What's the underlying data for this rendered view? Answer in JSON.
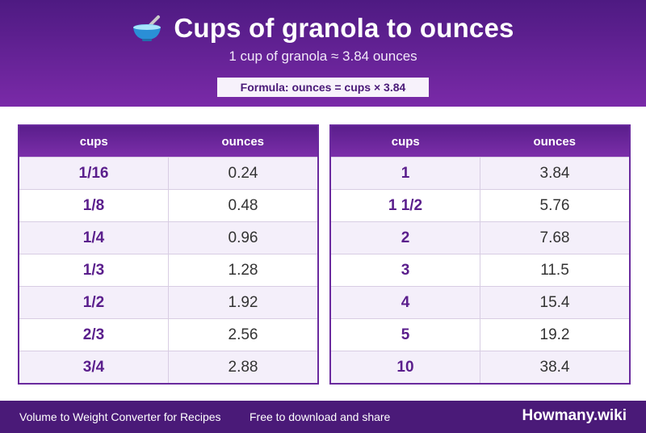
{
  "header": {
    "title": "Cups of granola to ounces",
    "subtitle": "1 cup of granola ≈ 3.84 ounces",
    "formula": "Formula: ounces = cups × 3.84",
    "icon": "bowl-icon"
  },
  "table_left": {
    "col1": "cups",
    "col2": "ounces",
    "rows": [
      {
        "cups": "1/16",
        "ounces": "0.24"
      },
      {
        "cups": "1/8",
        "ounces": "0.48"
      },
      {
        "cups": "1/4",
        "ounces": "0.96"
      },
      {
        "cups": "1/3",
        "ounces": "1.28"
      },
      {
        "cups": "1/2",
        "ounces": "1.92"
      },
      {
        "cups": "2/3",
        "ounces": "2.56"
      },
      {
        "cups": "3/4",
        "ounces": "2.88"
      }
    ]
  },
  "table_right": {
    "col1": "cups",
    "col2": "ounces",
    "rows": [
      {
        "cups": "1",
        "ounces": "3.84"
      },
      {
        "cups": "1 1/2",
        "ounces": "5.76"
      },
      {
        "cups": "2",
        "ounces": "7.68"
      },
      {
        "cups": "3",
        "ounces": "11.5"
      },
      {
        "cups": "4",
        "ounces": "15.4"
      },
      {
        "cups": "5",
        "ounces": "19.2"
      },
      {
        "cups": "10",
        "ounces": "38.4"
      }
    ]
  },
  "footer": {
    "left": "Volume to Weight Converter for Recipes",
    "middle": "Free to download and share",
    "brand": "Howmany.wiki"
  },
  "colors": {
    "primary": "#4e1a82",
    "accent": "#7a2aa8",
    "row_alt": "#f4effa"
  }
}
